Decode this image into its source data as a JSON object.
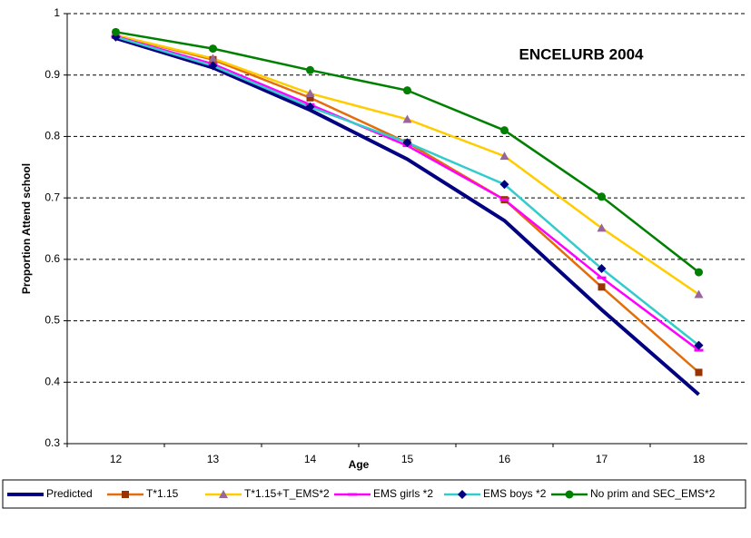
{
  "chart_data": {
    "type": "line",
    "title": "ENCELURB 2004",
    "x_label": "Age",
    "y_label": "Proportion Attend school",
    "categories": [
      "12",
      "13",
      "14",
      "15",
      "16",
      "17",
      "18"
    ],
    "ylim": [
      0.3,
      1
    ],
    "yticks": [
      0.3,
      0.4,
      0.5,
      0.6,
      0.7,
      0.8,
      0.9,
      1
    ],
    "grid": true,
    "legend": "bottom",
    "series": [
      {
        "name": "Predicted",
        "color": "#000080",
        "marker": "none",
        "marker_color": "#000080",
        "values": [
          0.96,
          0.912,
          0.843,
          0.763,
          0.663,
          0.518,
          0.38
        ]
      },
      {
        "name": "T*1.15",
        "color": "#e46c0a",
        "marker": "square",
        "marker_color": "#993300",
        "values": [
          0.965,
          0.925,
          0.863,
          0.79,
          0.697,
          0.555,
          0.416
        ]
      },
      {
        "name": "T*1.15+T_EMS*2",
        "color": "#ffcc00",
        "marker": "triangle",
        "marker_color": "#996699",
        "values": [
          0.965,
          0.927,
          0.87,
          0.828,
          0.768,
          0.651,
          0.543
        ]
      },
      {
        "name": "EMS girls *2",
        "color": "#ff00ff",
        "marker": "dash",
        "marker_color": "#ff00ff",
        "values": [
          0.963,
          0.918,
          0.852,
          0.785,
          0.697,
          0.57,
          0.452
        ]
      },
      {
        "name": "EMS boys *2",
        "color": "#33cccc",
        "marker": "diamond",
        "marker_color": "#000080",
        "values": [
          0.962,
          0.915,
          0.848,
          0.79,
          0.722,
          0.585,
          0.46
        ]
      },
      {
        "name": "No prim and SEC_EMS*2",
        "color": "#008000",
        "marker": "circle",
        "marker_color": "#008000",
        "values": [
          0.97,
          0.943,
          0.908,
          0.875,
          0.81,
          0.702,
          0.579
        ]
      }
    ]
  }
}
